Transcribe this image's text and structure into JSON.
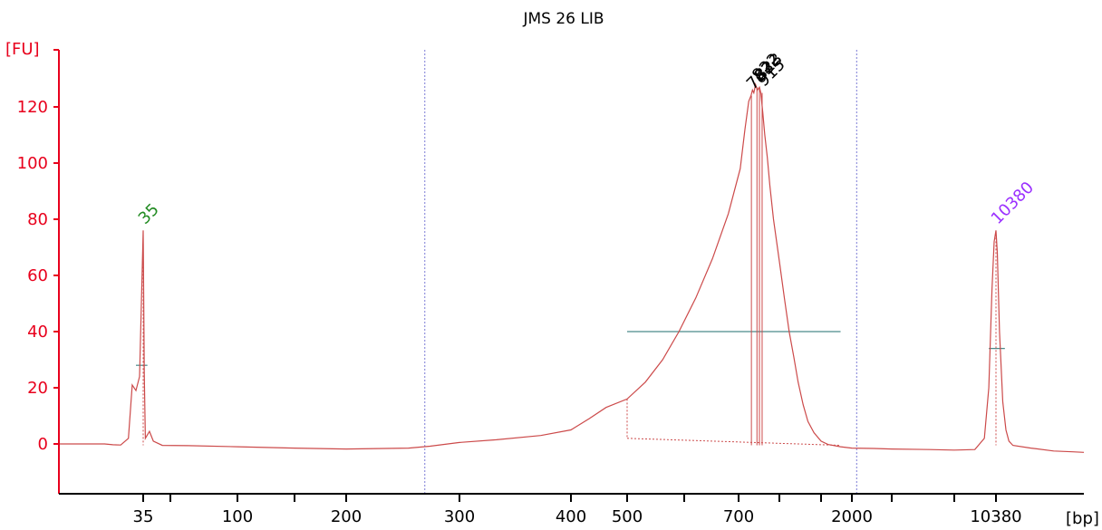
{
  "chart_data": {
    "type": "line",
    "title": "JMS 26 LIB",
    "ylabel": "[FU]",
    "xlabel": "[bp]",
    "ylim": [
      -17,
      140
    ],
    "yticks": [
      0,
      20,
      40,
      60,
      80,
      100,
      120
    ],
    "x_scale": "nonlinear (electropherogram, migration-time based)",
    "x_ticks": [
      {
        "label": "35",
        "bp": 35
      },
      {
        "label": "",
        "bp": 50
      },
      {
        "label": "100",
        "bp": 100
      },
      {
        "label": "",
        "bp": 150
      },
      {
        "label": "200",
        "bp": 200
      },
      {
        "label": "300",
        "bp": 300
      },
      {
        "label": "400",
        "bp": 400
      },
      {
        "label": "500",
        "bp": 500
      },
      {
        "label": "",
        "bp": 600
      },
      {
        "label": "700",
        "bp": 700
      },
      {
        "label": "",
        "bp": 1000
      },
      {
        "label": "",
        "bp": 1500
      },
      {
        "label": "2000",
        "bp": 2000
      },
      {
        "label": "",
        "bp": 3000
      },
      {
        "label": "",
        "bp": 7000
      },
      {
        "label": "10380",
        "bp": 10380
      }
    ],
    "series": [
      {
        "color": "#cc4a4a",
        "points": [
          [
            25,
            0
          ],
          [
            30,
            0
          ],
          [
            31,
            -0.3
          ],
          [
            32,
            -0.4
          ],
          [
            33,
            2
          ],
          [
            33.5,
            21
          ],
          [
            34,
            19
          ],
          [
            34.5,
            24
          ],
          [
            35,
            76
          ],
          [
            35.5,
            25
          ],
          [
            36,
            2
          ],
          [
            38,
            4.5
          ],
          [
            40,
            1
          ],
          [
            45,
            -0.5
          ],
          [
            60,
            -0.6
          ],
          [
            100,
            -1
          ],
          [
            150,
            -1.5
          ],
          [
            200,
            -1.8
          ],
          [
            250,
            -1.5
          ],
          [
            270,
            -0.8
          ],
          [
            300,
            0.5
          ],
          [
            330,
            1.5
          ],
          [
            370,
            3
          ],
          [
            400,
            5
          ],
          [
            430,
            9
          ],
          [
            460,
            13
          ],
          [
            500,
            16
          ],
          [
            530,
            22
          ],
          [
            560,
            30
          ],
          [
            590,
            40
          ],
          [
            620,
            52
          ],
          [
            650,
            66
          ],
          [
            680,
            82
          ],
          [
            710,
            98
          ],
          [
            740,
            112
          ],
          [
            765,
            122
          ],
          [
            780,
            124
          ],
          [
            790,
            126
          ],
          [
            800,
            125
          ],
          [
            812,
            128
          ],
          [
            825,
            126
          ],
          [
            840,
            127
          ],
          [
            850,
            125
          ],
          [
            865,
            118
          ],
          [
            880,
            110
          ],
          [
            900,
            102
          ],
          [
            920,
            92
          ],
          [
            950,
            80
          ],
          [
            1000,
            65
          ],
          [
            1050,
            52
          ],
          [
            1100,
            40
          ],
          [
            1150,
            31
          ],
          [
            1200,
            22
          ],
          [
            1260,
            14
          ],
          [
            1320,
            8
          ],
          [
            1400,
            4
          ],
          [
            1500,
            1
          ],
          [
            1600,
            -0.2
          ],
          [
            1800,
            -1
          ],
          [
            2000,
            -1.5
          ],
          [
            2500,
            -1.6
          ],
          [
            3000,
            -1.8
          ],
          [
            5000,
            -2
          ],
          [
            7000,
            -2.2
          ],
          [
            8500,
            -2
          ],
          [
            9300,
            2
          ],
          [
            9700,
            20
          ],
          [
            10000,
            55
          ],
          [
            10200,
            72
          ],
          [
            10380,
            76
          ],
          [
            10500,
            68
          ],
          [
            10700,
            40
          ],
          [
            11000,
            15
          ],
          [
            11300,
            5
          ],
          [
            11600,
            1
          ],
          [
            12000,
            -0.5
          ],
          [
            14000,
            -1.5
          ],
          [
            17000,
            -2.5
          ],
          [
            20000,
            -2.8
          ],
          [
            22000,
            -3
          ]
        ]
      }
    ],
    "peaks": [
      {
        "label": "35",
        "bp": 35,
        "fu": 76,
        "color": "#228b22"
      },
      {
        "label": "783",
        "bp": 783,
        "fu": 124,
        "color": "#000000"
      },
      {
        "label": "822",
        "bp": 822,
        "fu": 127,
        "color": "#000000"
      },
      {
        "label": "823",
        "bp": 840,
        "fu": 127,
        "color": "#000000"
      },
      {
        "label": "915",
        "bp": 860,
        "fu": 125,
        "color": "#000000"
      },
      {
        "label": "10380",
        "bp": 10380,
        "fu": 76,
        "color": "#9b30ff"
      }
    ],
    "regions": [
      {
        "from_bp": 500,
        "to_bp": 1800,
        "level_fu": 40
      }
    ],
    "marker_levels": [
      {
        "bp_from": 34,
        "bp_to": 37,
        "fu": 28
      },
      {
        "bp_from": 9700,
        "bp_to": 11200,
        "fu": 34
      }
    ],
    "vertical_guides_bp": [
      265,
      2100
    ],
    "grid": false,
    "legend": "none",
    "axis_color": "#e8001c"
  }
}
